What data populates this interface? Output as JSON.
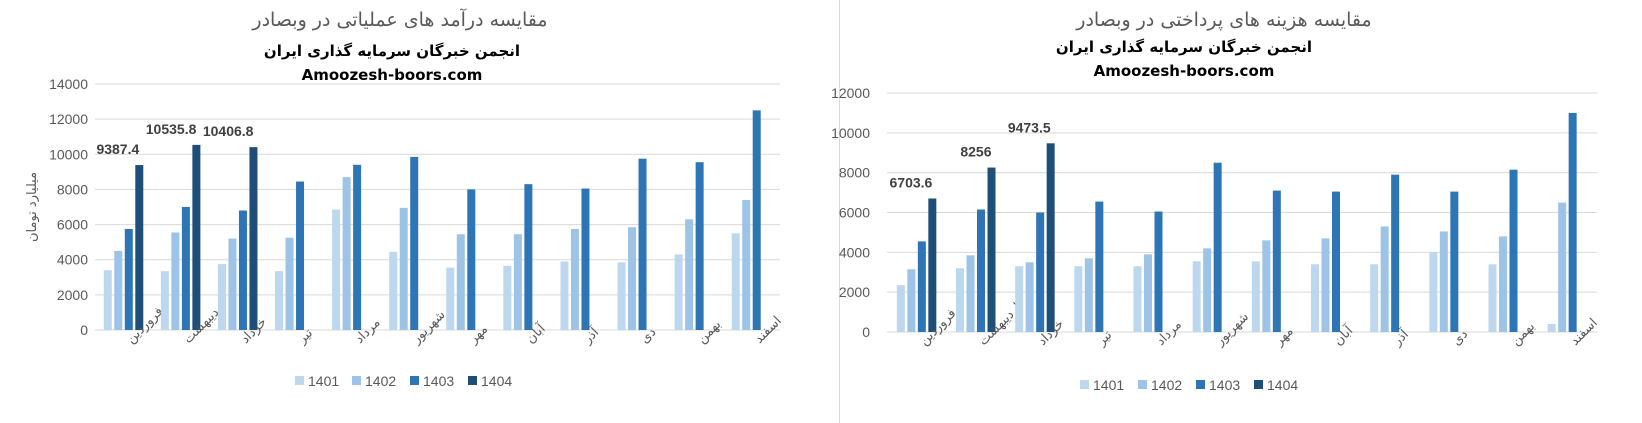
{
  "chart_data": [
    {
      "type": "bar",
      "title": "مقایسه درآمد های عملیاتی در وبصادر",
      "subtitle": "انجمن خبرگان سرمایه گذاری ایران",
      "subtitle2": "Amoozesh-boors.com",
      "ylabel": "میلیارد تومان",
      "xlabel": "",
      "ylim": [
        0,
        14000
      ],
      "yticks": [
        0,
        2000,
        4000,
        6000,
        8000,
        10000,
        12000,
        14000
      ],
      "grid": true,
      "legend_position": "bottom",
      "categories": [
        "فروردین",
        "اردیبهشت",
        "خرداد",
        "تیر",
        "مرداد",
        "شهریور",
        "مهر",
        "آبان",
        "آذر",
        "دی",
        "بهمن",
        "اسفند"
      ],
      "series": [
        {
          "name": "1401",
          "color": "#bdd7ee",
          "values": [
            3400,
            3350,
            3750,
            3350,
            6850,
            4450,
            3550,
            3650,
            3900,
            3850,
            4300,
            5500
          ]
        },
        {
          "name": "1402",
          "color": "#9dc3e6",
          "values": [
            4500,
            5550,
            5200,
            5250,
            8700,
            6950,
            5450,
            5450,
            5750,
            5850,
            6300,
            7400
          ]
        },
        {
          "name": "1403",
          "color": "#2e75b6",
          "values": [
            5750,
            7000,
            6800,
            8450,
            9400,
            9850,
            8000,
            8300,
            8050,
            9750,
            9550,
            12500
          ]
        },
        {
          "name": "1404",
          "color": "#1f4e79",
          "values": [
            9387.4,
            10535.8,
            10406.8,
            null,
            null,
            null,
            null,
            null,
            null,
            null,
            null,
            null
          ]
        }
      ],
      "data_labels": {
        "1404": [
          "9387.4",
          "10535.8",
          "10406.8"
        ]
      }
    },
    {
      "type": "bar",
      "title": "مقایسه هزینه های پرداختی در وبصادر",
      "subtitle": "انجمن خبرگان سرمایه گذاری ایران",
      "subtitle2": "Amoozesh-boors.com",
      "ylabel": "",
      "xlabel": "",
      "ylim": [
        0,
        12000
      ],
      "yticks": [
        0,
        2000,
        4000,
        6000,
        8000,
        10000,
        12000
      ],
      "grid": true,
      "legend_position": "bottom",
      "categories": [
        "فروردین",
        "اردیبهشت",
        "خرداد",
        "تیر",
        "مرداد",
        "شهریور",
        "مهر",
        "آبان",
        "آذر",
        "دی",
        "بهمن",
        "اسفند"
      ],
      "series": [
        {
          "name": "1401",
          "color": "#bdd7ee",
          "values": [
            2350,
            3200,
            3300,
            3300,
            3300,
            3550,
            3550,
            3400,
            3400,
            4000,
            3400,
            400
          ]
        },
        {
          "name": "1402",
          "color": "#9dc3e6",
          "values": [
            3150,
            3850,
            3500,
            3700,
            3900,
            4200,
            4600,
            4700,
            5300,
            5050,
            4800,
            6500
          ]
        },
        {
          "name": "1403",
          "color": "#2e75b6",
          "values": [
            4550,
            6150,
            6000,
            6550,
            6050,
            8500,
            7100,
            7050,
            7900,
            7050,
            8150,
            11000
          ]
        },
        {
          "name": "1404",
          "color": "#1f4e79",
          "values": [
            6703.6,
            8256,
            9473.5,
            null,
            null,
            null,
            null,
            null,
            null,
            null,
            null,
            null
          ]
        }
      ],
      "data_labels": {
        "1404": [
          "6703.6",
          "8256",
          "9473.5"
        ]
      }
    }
  ]
}
